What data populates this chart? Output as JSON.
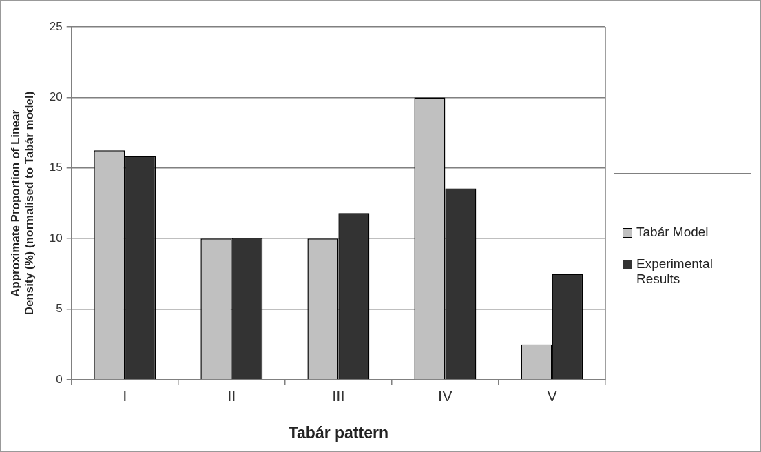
{
  "chart_data": {
    "type": "bar",
    "xlabel": "Tabár pattern",
    "ylabel": "Approximate Proportion of Linear Density (%) (normalised to Tabár model)",
    "categories": [
      "I",
      "II",
      "III",
      "IV",
      "V"
    ],
    "series": [
      {
        "name": "Tabár Model",
        "color": "#c0c0c0",
        "values": [
          16.25,
          10,
          10,
          20,
          2.5
        ]
      },
      {
        "name": "Experimental Results",
        "color": "#333333",
        "values": [
          15.85,
          10.05,
          11.8,
          13.55,
          7.5
        ]
      }
    ],
    "ylim": [
      0,
      25
    ],
    "yticks": [
      0,
      5,
      10,
      15,
      20,
      25
    ],
    "grid": "y",
    "legend": "right"
  }
}
